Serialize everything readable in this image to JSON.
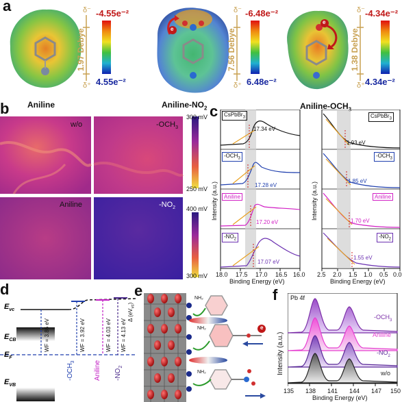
{
  "panel_a": {
    "letter": "a",
    "molecules": [
      {
        "name": "Aniline",
        "delta_minus": "δ⁻",
        "delta_plus": "δ⁺",
        "dipole": "1.97 Debye",
        "scale_max": "-4.55e⁻²",
        "scale_min": "4.55e⁻²"
      },
      {
        "name": "Aniline-NO",
        "name_sub": "2",
        "delta_minus": "δ⁻",
        "delta_plus": "δ⁺",
        "dipole": "7.56 Debye",
        "scale_max": "-6.48e⁻²",
        "scale_min": "6.48e⁻²"
      },
      {
        "name": "Aniline-OCH",
        "name_sub": "3",
        "delta_minus": "δ⁻",
        "delta_plus": "δ⁺",
        "dipole": "1.38 Debye",
        "scale_max": "-4.34e⁻²",
        "scale_min": "4.34e⁻²"
      }
    ],
    "electron_symbol": "e"
  },
  "panel_b": {
    "letter": "b",
    "maps": [
      {
        "label": "w/o"
      },
      {
        "label": "-OCH",
        "sub": "3"
      },
      {
        "label": "Aniline"
      },
      {
        "label": "-NO",
        "sub": "2"
      }
    ],
    "colorbars": [
      {
        "top": "300 mV",
        "bottom": "250 mV"
      },
      {
        "top": "400 mV",
        "bottom": "300 mV"
      }
    ]
  },
  "panel_c": {
    "letter": "c",
    "left": {
      "ylabel": "Intensity (a.u.)",
      "xlabel": "Binding Energy (eV)",
      "xticks": [
        "18.0",
        "17.5",
        "17.0",
        "16.5",
        "16.0"
      ],
      "traces": [
        {
          "label": "CsPbBr",
          "sub": "3",
          "value": "17.34 eV",
          "color": "#111111"
        },
        {
          "label": "-OCH",
          "sub": "3",
          "value": "17.28 eV",
          "color": "#1f3fae"
        },
        {
          "label": "Aniline",
          "value": "17.20 eV",
          "color": "#d11fc4"
        },
        {
          "label": "-NO",
          "sub": "2",
          "value": "17.07 eV",
          "color": "#6a2fb0"
        }
      ]
    },
    "right": {
      "ylabel": "Intensity (a.u.)",
      "xlabel": "Binding Energy (eV)",
      "xticks": [
        "2.5",
        "2.0",
        "1.5",
        "1.0",
        "0.5",
        "0.0"
      ],
      "traces": [
        {
          "label": "CsPbBr",
          "sub": "3",
          "value": "1.93 eV",
          "color": "#111111"
        },
        {
          "label": "-OCH",
          "sub": "3",
          "value": "1.85 eV",
          "color": "#1f3fae"
        },
        {
          "label": "Aniline",
          "value": "1.70 eV",
          "color": "#d11fc4"
        },
        {
          "label": "-NO",
          "sub": "2",
          "value": "1.55 eV",
          "color": "#6a2fb0"
        }
      ]
    }
  },
  "panel_d": {
    "letter": "d",
    "evc": "E",
    "evc_sub": "vc",
    "ecb": "E",
    "ecb_sub": "CB",
    "ef": "E",
    "ef_sub": "F",
    "evb": "E",
    "evb_sub": "VB",
    "wf_values": [
      "WF = 3.86 eV",
      "WF = 3.92 eV",
      "WF = 4.03 eV",
      "WF = 4.13 eV"
    ],
    "delta_label": "Δ (eV",
    "delta_sub": "vc",
    "delta_close": ")",
    "ligands": [
      {
        "label": "-OCH",
        "sub": "3",
        "color": "#1f3fae"
      },
      {
        "label": "Aniline",
        "color": "#c21fc4"
      },
      {
        "label": "-NO",
        "sub": "2",
        "color": "#4a2a8a"
      }
    ]
  },
  "panel_e": {
    "letter": "e",
    "groups": [
      "NH₂",
      "NH₂",
      "NH₂"
    ],
    "electron_symbol": "e"
  },
  "panel_f": {
    "letter": "f",
    "title": "Pb 4f",
    "ylabel": "Intensity (a.u.)",
    "xlabel": "Binding Energy (eV)",
    "xticks": [
      "135",
      "138",
      "141",
      "144",
      "147",
      "150"
    ],
    "traces": [
      {
        "label": "-OCH",
        "sub": "3",
        "color": "#7b2fa8"
      },
      {
        "label": "Aniline",
        "color": "#e63fd0"
      },
      {
        "label": "-NO",
        "sub": "2",
        "color": "#5a2a98"
      },
      {
        "label": "w/o",
        "color": "#222222"
      }
    ]
  }
}
